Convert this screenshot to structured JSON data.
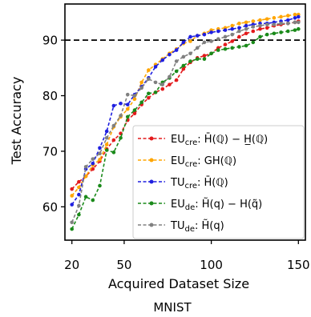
{
  "chart_data": {
    "type": "line",
    "title": "",
    "caption": "MNIST",
    "xlabel": "Acquired Dataset Size",
    "ylabel": "Test Accuracy",
    "xlim": [
      16,
      154
    ],
    "ylim": [
      54,
      96.5
    ],
    "xticks": [
      20,
      50,
      100,
      150
    ],
    "yticks": [
      60,
      70,
      80,
      90
    ],
    "reference_line": {
      "y": 90,
      "style": "dashed",
      "color": "#000000"
    },
    "legend_placement": "lower-right",
    "x": [
      20,
      24,
      28,
      32,
      36,
      40,
      44,
      48,
      52,
      56,
      60,
      64,
      68,
      72,
      76,
      80,
      84,
      88,
      92,
      96,
      100,
      104,
      108,
      112,
      116,
      120,
      124,
      128,
      132,
      136,
      140,
      144,
      148,
      150
    ],
    "series": [
      {
        "name": "EU_cre: H̄(ℚ) − H̲(ℚ)",
        "legend": {
          "main": "EU",
          "sub": "cre",
          "expr": ": H̄(ℚ) − H̲(ℚ)"
        },
        "color": "#e31a1c",
        "values": [
          63.2,
          64.5,
          65.5,
          66.8,
          68.2,
          70.4,
          72.0,
          73.2,
          75.6,
          76.8,
          78.4,
          79.6,
          80.6,
          81.2,
          82.0,
          82.8,
          84.8,
          86.0,
          86.8,
          87.2,
          87.6,
          88.6,
          89.2,
          89.8,
          90.6,
          91.2,
          91.6,
          92.0,
          92.2,
          92.6,
          92.8,
          93.0,
          93.2,
          93.4
        ]
      },
      {
        "name": "EU_cre: GH(ℚ)",
        "legend": {
          "main": "EU",
          "sub": "cre",
          "expr": ": GH(ℚ)"
        },
        "color": "#ffa500",
        "values": [
          62.0,
          63.5,
          65.5,
          67.5,
          68.5,
          71.2,
          74.4,
          76.2,
          77.6,
          79.4,
          82.4,
          84.6,
          85.6,
          86.6,
          87.6,
          88.4,
          89.4,
          89.8,
          90.8,
          91.2,
          91.8,
          92.0,
          92.2,
          92.6,
          93.0,
          93.2,
          93.4,
          93.6,
          93.8,
          94.0,
          94.2,
          94.4,
          94.6,
          94.6
        ]
      },
      {
        "name": "TU_cre: H̄(ℚ)",
        "legend": {
          "main": "TU",
          "sub": "cre",
          "expr": ": H̄(ℚ)"
        },
        "color": "#1f1fe0",
        "values": [
          60.4,
          62.2,
          66.8,
          67.8,
          70.6,
          73.6,
          78.2,
          78.6,
          78.4,
          80.2,
          81.6,
          83.2,
          85.2,
          86.4,
          87.4,
          88.2,
          89.6,
          90.6,
          90.8,
          91.0,
          91.4,
          91.6,
          91.8,
          92.0,
          92.2,
          92.6,
          92.8,
          93.0,
          93.0,
          93.2,
          93.4,
          93.6,
          94.0,
          94.2
        ]
      },
      {
        "name": "EU_de: H̃(q) − H(q̃)",
        "legend": {
          "main": "EU",
          "sub": "de",
          "expr": ": H̃(q) − H(q̃)"
        },
        "color": "#1a8a1a",
        "values": [
          56.0,
          58.6,
          61.8,
          61.2,
          63.8,
          70.2,
          69.8,
          72.4,
          76.2,
          77.4,
          78.8,
          80.4,
          80.6,
          82.4,
          83.2,
          84.4,
          85.4,
          86.2,
          86.6,
          86.6,
          87.6,
          88.2,
          88.4,
          88.6,
          88.8,
          89.0,
          89.6,
          90.6,
          91.0,
          91.2,
          91.4,
          91.6,
          91.8,
          92.0
        ]
      },
      {
        "name": "TU_de: H̃(q)",
        "legend": {
          "main": "TU",
          "sub": "de",
          "expr": ": H̃(q)"
        },
        "color": "#808080",
        "values": [
          57.2,
          60.2,
          67.2,
          68.6,
          69.6,
          72.4,
          74.6,
          76.4,
          80.2,
          80.0,
          81.4,
          83.0,
          82.4,
          82.0,
          83.4,
          86.2,
          87.0,
          87.6,
          88.6,
          89.6,
          89.8,
          90.2,
          90.6,
          91.0,
          91.6,
          92.0,
          92.4,
          92.6,
          92.8,
          92.8,
          93.0,
          93.0,
          93.2,
          93.2
        ]
      }
    ]
  }
}
